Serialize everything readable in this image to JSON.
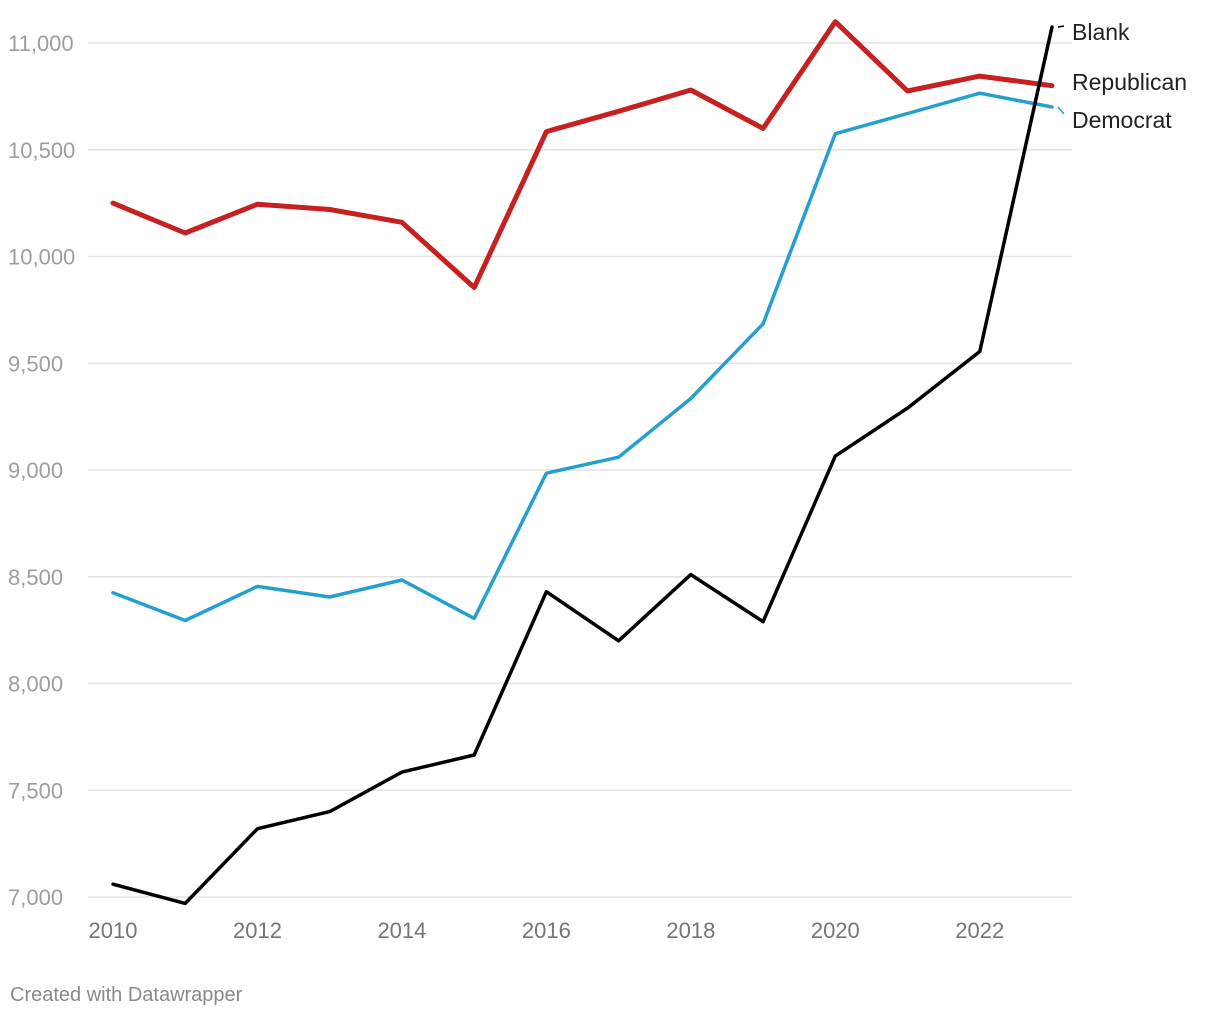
{
  "chart_data": {
    "type": "line",
    "x": [
      2010,
      2011,
      2012,
      2013,
      2014,
      2015,
      2016,
      2017,
      2018,
      2019,
      2020,
      2021,
      2022,
      2023
    ],
    "series": [
      {
        "name": "Republican",
        "color": "#c72020",
        "values": [
          10250,
          10110,
          10245,
          10220,
          10160,
          9855,
          10585,
          10680,
          10780,
          10600,
          11100,
          10775,
          10845,
          10800
        ]
      },
      {
        "name": "Democrat",
        "color": "#23a0cc",
        "values": [
          8425,
          8295,
          8455,
          8405,
          8485,
          8305,
          8985,
          9060,
          9335,
          9685,
          10575,
          10670,
          10765,
          10700
        ]
      },
      {
        "name": "Blank",
        "color": "#000000",
        "values": [
          7060,
          6970,
          7320,
          7400,
          7585,
          7665,
          8430,
          8200,
          8510,
          8290,
          9065,
          9290,
          9555,
          11075
        ]
      }
    ],
    "y_ticks": [
      "7,000",
      "7,500",
      "8,000",
      "8,500",
      "9,000",
      "9,500",
      "10,000",
      "10,500",
      "11,000"
    ],
    "y_tick_values": [
      7000,
      7500,
      8000,
      8500,
      9000,
      9500,
      10000,
      10500,
      11000
    ],
    "x_ticks": [
      "2010",
      "2012",
      "2014",
      "2016",
      "2018",
      "2020",
      "2022"
    ],
    "x_tick_values": [
      2010,
      2012,
      2014,
      2016,
      2018,
      2020,
      2022
    ],
    "ylim": [
      7000,
      11000
    ],
    "xlim": [
      2010,
      2023
    ],
    "grid": true,
    "legend": "direct-labels-right"
  },
  "footer": {
    "credit": "Created with Datawrapper"
  }
}
